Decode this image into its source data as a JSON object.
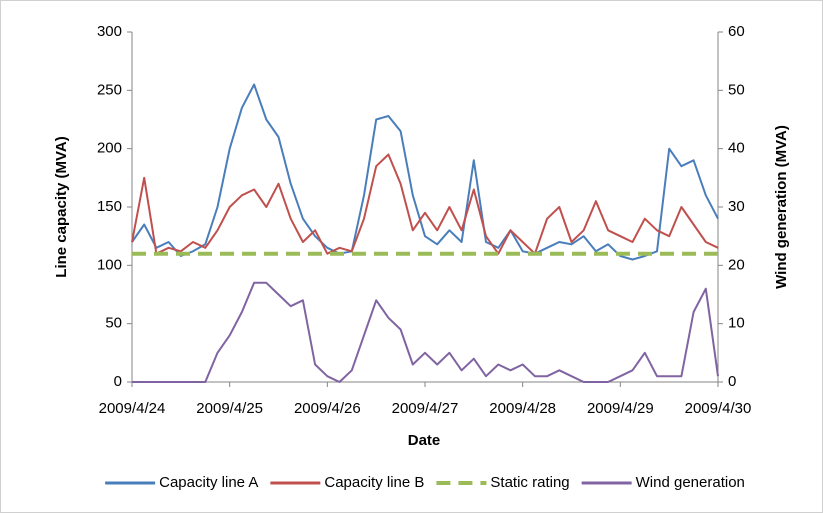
{
  "chart_data": {
    "type": "line",
    "x_label": "Date",
    "y_label": "Line capacity (MVA)",
    "y2_label": "Wind generation (MVA)",
    "x": [
      0,
      0.125,
      0.25,
      0.375,
      0.5,
      0.625,
      0.75,
      0.875,
      1,
      1.125,
      1.25,
      1.375,
      1.5,
      1.625,
      1.75,
      1.875,
      2,
      2.125,
      2.25,
      2.375,
      2.5,
      2.625,
      2.75,
      2.875,
      3,
      3.125,
      3.25,
      3.375,
      3.5,
      3.625,
      3.75,
      3.875,
      4,
      4.125,
      4.25,
      4.375,
      4.5,
      4.625,
      4.75,
      4.875,
      5,
      5.125,
      5.25,
      5.375,
      5.5,
      5.625,
      5.75,
      5.875,
      6
    ],
    "xlim": [
      0,
      6
    ],
    "xticks": [
      {
        "value": 0,
        "label": "2009/4/24"
      },
      {
        "value": 1,
        "label": "2009/4/25"
      },
      {
        "value": 2,
        "label": "2009/4/26"
      },
      {
        "value": 3,
        "label": "2009/4/27"
      },
      {
        "value": 4,
        "label": "2009/4/28"
      },
      {
        "value": 5,
        "label": "2009/4/29"
      },
      {
        "value": 6,
        "label": "2009/4/30"
      }
    ],
    "ylim": [
      0,
      300
    ],
    "yticks": [
      0,
      50,
      100,
      150,
      200,
      250,
      300
    ],
    "y2lim": [
      0,
      60
    ],
    "y2ticks": [
      0,
      10,
      20,
      30,
      40,
      50,
      60
    ],
    "legend": "bottom",
    "series": [
      {
        "name": "Capacity line A",
        "color": "#4a7ebb",
        "style": "solid",
        "values": [
          120,
          135,
          115,
          120,
          108,
          112,
          118,
          150,
          200,
          235,
          255,
          225,
          210,
          170,
          140,
          125,
          115,
          110,
          112,
          160,
          225,
          228,
          215,
          160,
          125,
          118,
          130,
          120,
          190,
          120,
          115,
          130,
          112,
          110,
          115,
          120,
          118,
          125,
          112,
          118,
          108,
          105,
          108,
          112,
          200,
          185,
          190,
          160,
          140
        ]
      },
      {
        "name": "Capacity line B",
        "color": "#c0504d",
        "style": "solid",
        "values": [
          120,
          175,
          110,
          115,
          112,
          120,
          115,
          130,
          150,
          160,
          165,
          150,
          170,
          140,
          120,
          130,
          110,
          115,
          112,
          140,
          185,
          195,
          170,
          130,
          145,
          130,
          150,
          130,
          165,
          125,
          110,
          130,
          120,
          110,
          140,
          150,
          120,
          130,
          155,
          130,
          125,
          120,
          140,
          130,
          125,
          150,
          135,
          120,
          115
        ]
      },
      {
        "name": "Static rating",
        "color": "#9bbb59",
        "style": "dashed",
        "values": [
          110,
          110,
          110,
          110,
          110,
          110,
          110,
          110,
          110,
          110,
          110,
          110,
          110,
          110,
          110,
          110,
          110,
          110,
          110,
          110,
          110,
          110,
          110,
          110,
          110,
          110,
          110,
          110,
          110,
          110,
          110,
          110,
          110,
          110,
          110,
          110,
          110,
          110,
          110,
          110,
          110,
          110,
          110,
          110,
          110,
          110,
          110,
          110,
          110
        ]
      },
      {
        "name": "Wind generation",
        "color": "#8064a2",
        "style": "solid",
        "axis": "y2",
        "values": [
          0,
          0,
          0,
          0,
          0,
          0,
          0,
          5,
          8,
          12,
          17,
          17,
          15,
          13,
          14,
          3,
          1,
          0,
          2,
          8,
          14,
          11,
          9,
          3,
          5,
          3,
          5,
          2,
          4,
          1,
          3,
          2,
          3,
          1,
          1,
          2,
          1,
          0,
          0,
          0,
          1,
          2,
          5,
          1,
          1,
          1,
          12,
          16,
          1
        ]
      }
    ]
  }
}
